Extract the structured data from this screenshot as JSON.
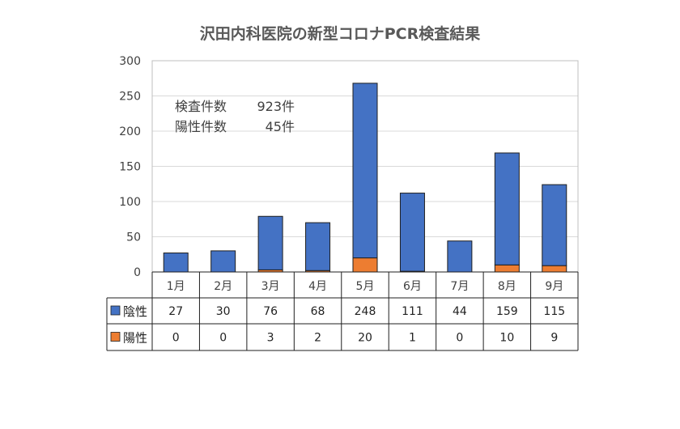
{
  "chart_data": {
    "type": "bar",
    "stacked": true,
    "title": "沢田内科医院の新型コロナPCR検査結果",
    "categories": [
      "1月",
      "2月",
      "3月",
      "4月",
      "5月",
      "6月",
      "7月",
      "8月",
      "9月"
    ],
    "series": [
      {
        "name": "陰性",
        "color": "#4472c4",
        "values": [
          27,
          30,
          76,
          68,
          248,
          111,
          44,
          159,
          115
        ]
      },
      {
        "name": "陽性",
        "color": "#ed7d31",
        "values": [
          0,
          0,
          3,
          2,
          20,
          1,
          0,
          10,
          9
        ]
      }
    ],
    "ylim": [
      0,
      300
    ],
    "yticks": [
      0,
      50,
      100,
      150,
      200,
      250,
      300
    ],
    "grid": true,
    "legend": "data-table",
    "annotations": {
      "tested_label": "検査件数",
      "tested_value": "923件",
      "positive_label": "陽性件数",
      "positive_value": "45件"
    }
  }
}
